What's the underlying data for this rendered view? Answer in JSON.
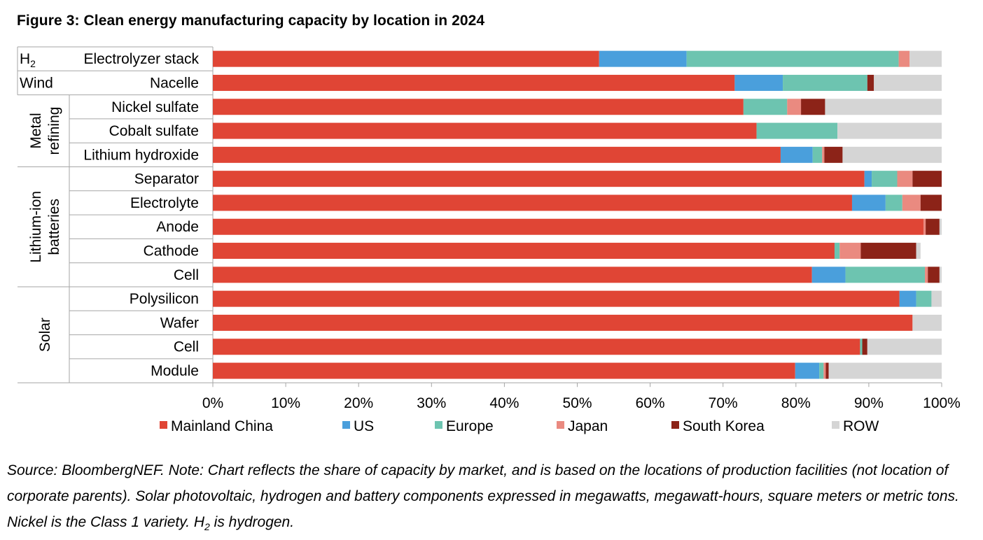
{
  "title": "Figure 3:  Clean energy manufacturing capacity by location in 2024",
  "note": {
    "part1": "Source: BloombergNEF. Note: Chart reflects the share of capacity by market, and is based on the locations of production facilities (not location of corporate parents). Solar photovoltaic, hydrogen and battery components expressed in megawatts, megawatt-hours, square meters or metric tons. Nickel is the Class 1 variety. H",
    "sub": "2",
    "part2": " is hydrogen."
  },
  "chart_data": {
    "type": "bar",
    "orientation": "horizontal",
    "stacked": "percent",
    "xlim": [
      0,
      100
    ],
    "xticks": [
      "0%",
      "10%",
      "20%",
      "30%",
      "40%",
      "50%",
      "60%",
      "70%",
      "80%",
      "90%",
      "100%"
    ],
    "legend_position": "bottom",
    "groups": [
      {
        "label": "H",
        "label_sub": "2",
        "rows": 1
      },
      {
        "label": "Wind",
        "rows": 1
      },
      {
        "label": "Metal refining",
        "label_lines": [
          "Metal",
          "refining"
        ],
        "rows": 3
      },
      {
        "label": "Lithium-ion batteries",
        "label_lines": [
          "Lithium-ion",
          "batteries"
        ],
        "rows": 5
      },
      {
        "label": "Solar",
        "label_lines": [
          "Solar"
        ],
        "rows": 4
      }
    ],
    "categories": [
      "Electrolyzer stack",
      "Nacelle",
      "Nickel sulfate",
      "Cobalt sulfate",
      "Lithium hydroxide",
      "Separator",
      "Electrolyte",
      "Anode",
      "Cathode",
      "Cell",
      "Polysilicon",
      "Wafer",
      "Cell",
      "Module"
    ],
    "series": [
      {
        "name": "Mainland China",
        "color": "#e04535",
        "values": [
          53.0,
          71.6,
          72.8,
          74.6,
          77.9,
          89.4,
          87.7,
          97.5,
          85.3,
          82.2,
          94.2,
          96.0,
          88.8,
          79.9
        ]
      },
      {
        "name": "US",
        "color": "#4a9fdc",
        "values": [
          12.0,
          6.6,
          0,
          0,
          4.4,
          1.0,
          4.6,
          0,
          0,
          4.6,
          2.3,
          0,
          0,
          3.3
        ]
      },
      {
        "name": "Europe",
        "color": "#6dc4b0",
        "values": [
          29.1,
          11.6,
          6.0,
          11.1,
          1.3,
          3.5,
          2.3,
          0,
          0.7,
          10.9,
          2.1,
          0,
          0.3,
          0.6
        ]
      },
      {
        "name": "Japan",
        "color": "#ea8a80",
        "values": [
          1.5,
          0,
          1.9,
          0,
          0.3,
          2.1,
          2.5,
          0.3,
          2.9,
          0.4,
          0,
          0,
          0,
          0.3
        ]
      },
      {
        "name": "South Korea",
        "color": "#8c2318",
        "values": [
          0,
          0.9,
          3.3,
          0,
          2.5,
          4.0,
          2.9,
          1.9,
          7.6,
          1.6,
          0,
          0,
          0.7,
          0.4
        ]
      },
      {
        "name": "ROW",
        "color": "#d5d5d5",
        "values": [
          4.4,
          9.3,
          16.0,
          14.3,
          13.6,
          0,
          0,
          0.3,
          0.6,
          0.3,
          1.4,
          4.0,
          10.2,
          15.5
        ]
      }
    ]
  }
}
